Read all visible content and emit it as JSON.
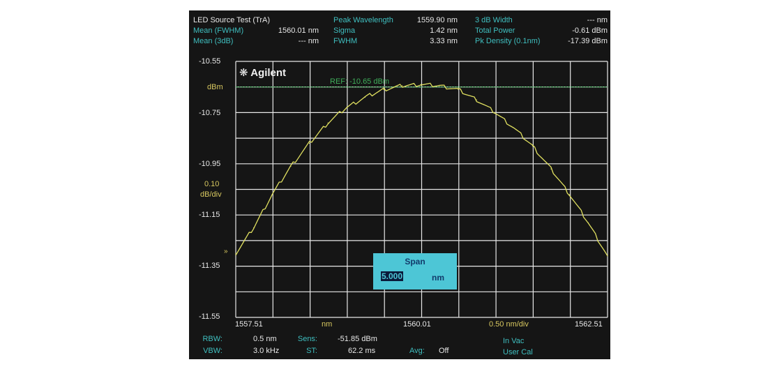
{
  "header": {
    "title": "LED Source Test (TrA)",
    "mean_fwhm": {
      "label": "Mean (FWHM)",
      "value": "1560.01 nm"
    },
    "mean_3db": {
      "label": "Mean (3dB)",
      "value": "--- nm"
    },
    "peak_wavelength": {
      "label": "Peak Wavelength",
      "value": "1559.90 nm"
    },
    "sigma": {
      "label": "Sigma",
      "value": "1.42 nm"
    },
    "fwhm": {
      "label": "FWHM",
      "value": "3.33 nm"
    },
    "width_3db": {
      "label": "3 dB Width",
      "value": "--- nm"
    },
    "total_power": {
      "label": "Total Power",
      "value": "-0.61 dBm"
    },
    "pk_density": {
      "label": "Pk Density (0.1nm)",
      "value": "-17.39 dBm"
    }
  },
  "logo": "Agilent",
  "y_axis": {
    "unit": "dBm",
    "scale_value": "0.10",
    "scale_unit": "dB/div",
    "ticks": [
      "-10.55",
      "-10.75",
      "-10.95",
      "-11.15",
      "-11.35",
      "-11.55"
    ]
  },
  "x_axis": {
    "start": "1557.51",
    "center": "1560.01",
    "stop": "1562.51",
    "unit": "nm",
    "scale": "0.50 nm/div"
  },
  "ref_label": "REF: -10.65 dBm",
  "span_dialog": {
    "title": "Span",
    "value": "5.000",
    "unit": "nm"
  },
  "footer": {
    "rbw": {
      "label": "RBW:",
      "value": "0.5 nm"
    },
    "vbw": {
      "label": "VBW:",
      "value": "3.0 kHz"
    },
    "sens": {
      "label": "Sens:",
      "value": "-51.85 dBm"
    },
    "st": {
      "label": "ST:",
      "value": "62.2 ms"
    },
    "avg": {
      "label": "Avg:",
      "value": "Off"
    },
    "in_vac": "In Vac",
    "user_cal": "User Cal"
  },
  "colors": {
    "trace": "#e0e060",
    "ref_line": "#3fae5a",
    "grid": "#e8e8e8",
    "label": "#3fbfc0",
    "dialog": "#4dc6d6"
  },
  "chart_data": {
    "type": "line",
    "xlabel": "nm",
    "ylabel": "dBm",
    "xlim": [
      1557.51,
      1562.51
    ],
    "ylim": [
      -11.55,
      -10.55
    ],
    "grid": true,
    "reference_level": -10.65,
    "x": [
      1557.51,
      1557.75,
      1558.0,
      1558.25,
      1558.5,
      1558.75,
      1559.0,
      1559.25,
      1559.5,
      1559.75,
      1560.0,
      1560.25,
      1560.5,
      1560.75,
      1561.0,
      1561.25,
      1561.5,
      1561.75,
      1562.0,
      1562.25,
      1562.51
    ],
    "y": [
      -11.3,
      -11.2,
      -11.07,
      -10.96,
      -10.87,
      -10.79,
      -10.73,
      -10.69,
      -10.66,
      -10.645,
      -10.64,
      -10.645,
      -10.66,
      -10.7,
      -10.75,
      -10.81,
      -10.88,
      -10.97,
      -11.07,
      -11.18,
      -11.31
    ]
  }
}
